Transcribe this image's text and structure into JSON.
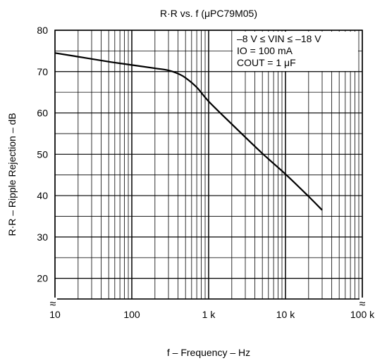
{
  "chart_data": {
    "type": "line",
    "title": "R·R vs. f (μPC79M05)",
    "xlabel": "f – Frequency – Hz",
    "ylabel": "R·R – Ripple Rejection – dB",
    "x_scale": "log",
    "xlim": [
      10,
      100000
    ],
    "ylim": [
      15,
      80
    ],
    "grid": true,
    "x_ticks": [
      10,
      100,
      1000,
      10000,
      100000
    ],
    "x_tick_labels": [
      "10",
      "100",
      "1 k",
      "10 k",
      "100 k"
    ],
    "y_ticks": [
      20,
      30,
      40,
      50,
      60,
      70,
      80
    ],
    "y_tick_labels": [
      "20",
      "30",
      "40",
      "50",
      "60",
      "70",
      "80"
    ],
    "annotations": [
      "–8 V ≤ VIN ≤ –18 V",
      "IO = 100 mA",
      "COUT = 1 μF"
    ],
    "series": [
      {
        "x": [
          10,
          20,
          50,
          100,
          200,
          300,
          400,
          500,
          700,
          1000,
          2000,
          5000,
          10000,
          20000,
          30000
        ],
        "y": [
          74.5,
          73.6,
          72.4,
          71.6,
          70.8,
          70.3,
          69.5,
          68.5,
          66.2,
          62.8,
          57.3,
          50.2,
          45.2,
          39.8,
          36.5
        ]
      }
    ]
  },
  "colors": {
    "line": "#000000",
    "grid": "#000000",
    "background": "#ffffff"
  },
  "decorations": {
    "axis_break_symbol": "≈"
  }
}
